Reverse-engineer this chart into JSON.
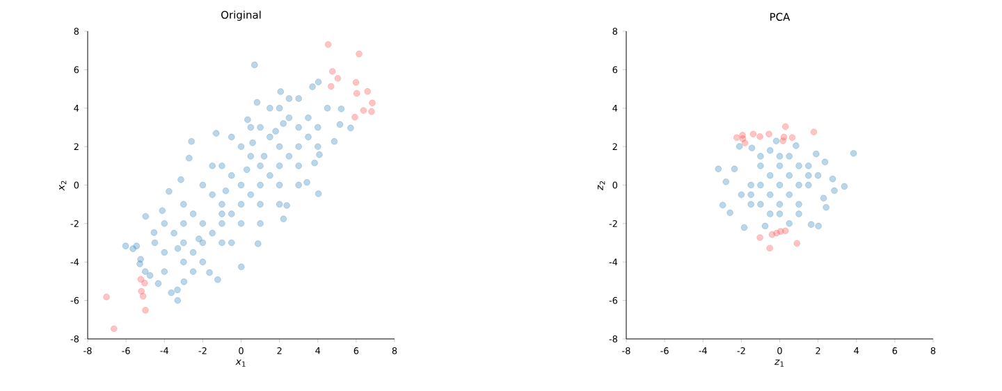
{
  "chart_data": [
    {
      "type": "scatter",
      "title": "Original",
      "xlabel": "*x*$_{1}$",
      "ylabel": "*x*$_{2}$",
      "xlim": [
        -8,
        8
      ],
      "ylim": [
        -8,
        8
      ],
      "xticks": [
        -8,
        -6,
        -4,
        -2,
        0,
        2,
        4,
        6,
        8
      ],
      "yticks": [
        -8,
        -6,
        -4,
        -2,
        0,
        2,
        4,
        6,
        8
      ],
      "grid": false,
      "series": [
        {
          "color": "#1f77b4",
          "x": [
            0.7,
            -6.02,
            -5.64,
            -5.45,
            -4.98,
            -5.24,
            -5.28,
            -4.75,
            -4.32,
            -3.64,
            -3.31,
            -3.32,
            -2.98,
            -1.65,
            -1.22,
            0.01,
            0.88,
            2.21,
            2.38,
            3.43,
            4.03,
            4.08,
            3.83,
            4.86,
            5.71,
            5.15,
            5.22,
            4.03,
            3.72,
            2.06,
            0.83,
            0.34,
            -1.3,
            -2.59,
            -2.71,
            -3.14,
            -3.76,
            -4.11,
            -4.54,
            -3,
            -2,
            -1,
            0,
            1,
            2,
            3,
            -2.5,
            -1.5,
            -0.5,
            0.5,
            1.5,
            2.5,
            -3,
            -2,
            -1,
            0,
            1,
            2,
            3,
            4,
            -3.5,
            -4,
            -3,
            -2,
            -1,
            0,
            1,
            2,
            3,
            4,
            -4,
            -3,
            -2,
            -1,
            0,
            1,
            2,
            3,
            -1.5,
            -0.5,
            0.5,
            1.5,
            2.5,
            3.5,
            -2.5,
            -1.5,
            -0.5,
            0.5,
            1.5,
            2.5,
            4.5,
            3.5,
            -4.5,
            -5,
            -4,
            -2.5,
            -0.5,
            1,
            2,
            3,
            -1,
            0.3,
            1.2,
            -0.8,
            1.8,
            -2.2,
            0.6,
            2.2,
            -3.3
          ],
          "values": [
            6.25,
            -3.17,
            -3.31,
            -3.17,
            -1.63,
            -3.86,
            -4.1,
            -4.7,
            -5.12,
            -5.6,
            -6.0,
            -5.45,
            -5.03,
            -4.55,
            -4.92,
            -4.25,
            -3.05,
            -1.76,
            -1.06,
            0.14,
            -0.45,
            1.58,
            1.15,
            2.27,
            2.97,
            3.15,
            3.96,
            5.36,
            5.11,
            4.86,
            4.3,
            3.4,
            2.69,
            2.27,
            1.4,
            0.28,
            -0.33,
            -1.33,
            -2.47,
            -3,
            -2,
            -1,
            0,
            1,
            2,
            3,
            -1.5,
            -0.5,
            0.5,
            1.5,
            2.5,
            3.5,
            -2,
            -3,
            -2,
            -1,
            0,
            1,
            2,
            3,
            -2.5,
            -3.5,
            -4,
            -4,
            -3,
            -2,
            -1,
            0,
            1,
            2,
            -2,
            -1,
            0,
            1,
            2,
            3,
            4,
            4.5,
            -2.5,
            -1.5,
            -0.5,
            0.5,
            1.5,
            2.5,
            -3.5,
            1.0,
            2.5,
            3,
            4,
            4.5,
            4,
            3.5,
            -3,
            -4.5,
            -4.5,
            -4.5,
            -3,
            -2,
            -1,
            0,
            -1.5,
            0.8,
            1.5,
            -0.3,
            2.8,
            -2.8,
            2.2,
            3.2,
            -3.3
          ]
        },
        {
          "color": "#ff4040",
          "x": [
            4.54,
            6.15,
            4.76,
            5.04,
            4.69,
            5.99,
            6.03,
            6.59,
            6.84,
            6.38,
            6.8,
            5.93,
            -7.02,
            -6.63,
            -5.23,
            -5.03,
            -5.2,
            -5.11,
            -4.99
          ],
          "values": [
            7.31,
            6.82,
            5.91,
            5.55,
            5.13,
            5.34,
            4.77,
            4.87,
            4.27,
            3.88,
            3.82,
            3.53,
            -5.82,
            -7.47,
            -4.9,
            -5.1,
            -5.52,
            -5.78,
            -6.51
          ]
        }
      ]
    },
    {
      "type": "scatter",
      "title": "PCA",
      "xlabel": "*z*$_{1}$",
      "ylabel": "*z*$_{2}$",
      "xlim": [
        -8,
        8
      ],
      "ylim": [
        -8,
        8
      ],
      "xticks": [
        -8,
        -6,
        -4,
        -2,
        0,
        2,
        4,
        6,
        8
      ],
      "yticks": [
        -8,
        -6,
        -4,
        -2,
        0,
        2,
        4,
        6,
        8
      ],
      "grid": false,
      "series": [
        {
          "color": "#1f77b4",
          "x": [
            3.85,
            -3.2,
            -2.97,
            -2.59,
            -1.85,
            -0.76,
            1.64,
            2.02,
            3.37,
            2.85,
            2.76,
            2.36,
            1.9,
            -2.1,
            -1.45,
            -0.18,
            0.85,
            -2.8,
            -2.36,
            2.42,
            2.29,
            0,
            0.5,
            0.5,
            -0.5,
            -0.5,
            1,
            -1,
            0,
            0,
            1,
            1,
            -1,
            -1,
            1.5,
            -1.5,
            0,
            0,
            0.5,
            -0.5,
            1.5,
            -1.5,
            -1,
            1,
            1.5,
            -1.5,
            2,
            -2,
            0.5,
            -0.5
          ],
          "values": [
            1.65,
            0.84,
            -1.04,
            -1.44,
            -2.21,
            -2.13,
            -2.05,
            -2.13,
            -0.07,
            -0.29,
            0.32,
            1.2,
            1.62,
            2.01,
            1.93,
            2.29,
            2.05,
            0.17,
            0.84,
            -1.16,
            -0.68,
            0,
            0.5,
            -0.5,
            0.5,
            -0.5,
            0,
            0,
            1,
            -1,
            1,
            -1,
            1,
            -1,
            0,
            0,
            1.5,
            -1.5,
            1.5,
            -1.5,
            0.5,
            -0.5,
            1.5,
            -1.5,
            1,
            -1,
            0.5,
            -0.5,
            -2,
            1.8
          ]
        },
        {
          "color": "#ff4040",
          "x": [
            -2.24,
            -1.94,
            -1.92,
            -1.81,
            -1.38,
            -1.03,
            -0.56,
            0.3,
            0.22,
            0.17,
            0.65,
            1.78,
            -1.03,
            -0.4,
            -0.16,
            0.05,
            0.3,
            -0.52,
            0.9
          ],
          "values": [
            2.47,
            2.59,
            2.41,
            2.19,
            2.65,
            2.52,
            2.65,
            3.04,
            2.5,
            2.3,
            2.47,
            2.76,
            -2.73,
            -2.57,
            -2.5,
            -2.41,
            -2.38,
            -3.28,
            -3.03
          ]
        }
      ]
    }
  ]
}
